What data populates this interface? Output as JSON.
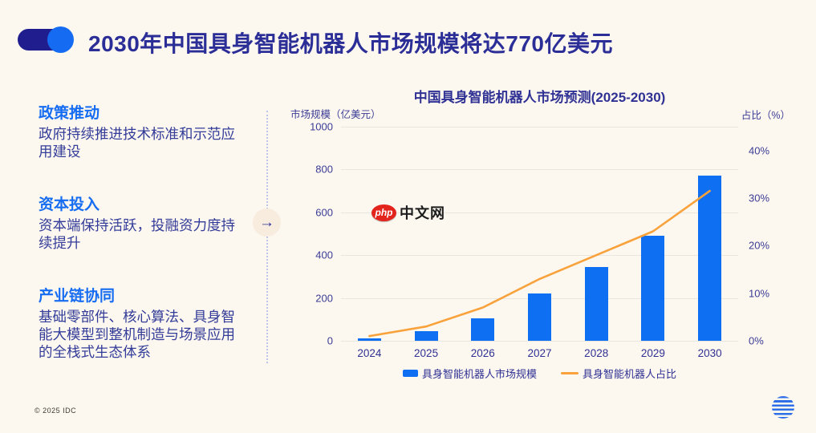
{
  "header": {
    "title": "2030年中国具身智能机器人市场规模将达770亿美元"
  },
  "sections": [
    {
      "heading": "政策推动",
      "body": "政府持续推进技术标准和示范应用建设"
    },
    {
      "heading": "资本投入",
      "body": "资本端保持活跃，投融资力度持续提升"
    },
    {
      "heading": "产业链协同",
      "body": "基础零部件、核心算法、具身智能大模型到整机制造与场景应用的全栈式生态体系"
    }
  ],
  "divider": {
    "arrow": "→"
  },
  "chart_data": {
    "type": "bar",
    "title": "中国具身智能机器人市场预测(2025-2030)",
    "categories": [
      "2024",
      "2025",
      "2026",
      "2027",
      "2028",
      "2029",
      "2030"
    ],
    "series": [
      {
        "name": "具身智能机器人市场规模",
        "type": "bar",
        "axis": "left",
        "values": [
          10,
          45,
          105,
          220,
          345,
          490,
          770
        ],
        "color": "#0e6ff2"
      },
      {
        "name": "具身智能机器人占比",
        "type": "line",
        "axis": "right",
        "values": [
          1,
          3,
          7,
          13,
          18,
          23,
          31.5
        ],
        "color": "#f9a23b"
      }
    ],
    "left_axis": {
      "label": "市场规模（亿美元）",
      "ticks": [
        1000,
        800,
        600,
        400,
        200,
        0
      ],
      "min": 0,
      "max": 1000
    },
    "right_axis": {
      "label": "占比（%）",
      "ticks": [
        "40%",
        "30%",
        "20%",
        "10%",
        "0%"
      ],
      "tick_values": [
        40,
        30,
        20,
        10,
        0
      ],
      "min": 0,
      "max": 45
    },
    "grid": true,
    "legend_position": "bottom"
  },
  "watermark": {
    "badge": "php",
    "text": "中文网"
  },
  "footer": {
    "copyright": "© 2025 IDC"
  },
  "colors": {
    "background": "#fcf7ef",
    "navy_text": "#2c2e97",
    "accent_blue": "#156cf2",
    "bar_blue": "#0e6ff2",
    "line_orange": "#f9a23b",
    "watermark_red": "#e3241d",
    "gridline": "#e9e5df",
    "decor_navy": "#201e8e"
  }
}
